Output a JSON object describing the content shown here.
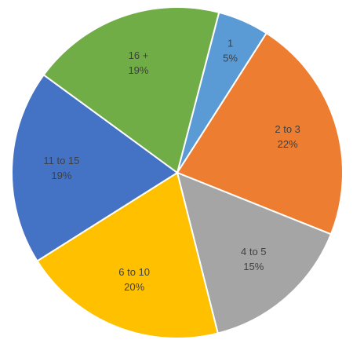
{
  "chart_data": {
    "type": "pie",
    "categories": [
      "1",
      "2 to 3",
      "4 to 5",
      "6 to 10",
      "11 to 15",
      "16 +"
    ],
    "values": [
      5,
      22,
      15,
      20,
      19,
      19
    ],
    "value_labels": [
      "5%",
      "22%",
      "15%",
      "20%",
      "19%",
      "19%"
    ],
    "colors": [
      "#5b9bd5",
      "#ed7d31",
      "#a5a5a5",
      "#ffc000",
      "#4472c4",
      "#70ad47"
    ]
  }
}
